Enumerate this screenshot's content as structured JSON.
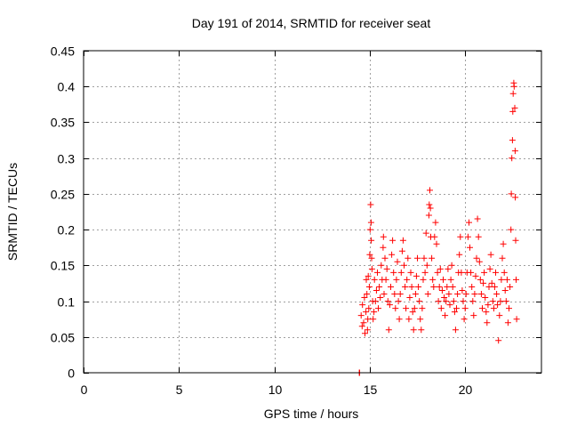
{
  "chart_data": {
    "type": "scatter",
    "title": "Day 191 of 2014, SRMTID for receiver seat",
    "xlabel": "GPS time / hours",
    "ylabel": "SRMTID / TECUs",
    "xlim": [
      0,
      24
    ],
    "ylim": [
      0,
      0.45
    ],
    "xticks": [
      0,
      5,
      10,
      15,
      20
    ],
    "xtick_labels": [
      "0",
      "5",
      "10",
      "15",
      "20"
    ],
    "yticks": [
      0,
      0.05,
      0.1,
      0.15,
      0.2,
      0.25,
      0.3,
      0.35,
      0.4,
      0.45
    ],
    "ytick_labels": [
      "0",
      "0.05",
      "0.1",
      "0.15",
      "0.2",
      "0.25",
      "0.3",
      "0.35",
      "0.4",
      "0.45"
    ],
    "grid": true,
    "marker": "plus",
    "color": "#ff0000",
    "series": [
      {
        "name": "SRMTID",
        "points": [
          [
            14.45,
            0.0
          ],
          [
            14.47,
            0.0
          ],
          [
            14.55,
            0.08
          ],
          [
            14.6,
            0.065
          ],
          [
            14.62,
            0.095
          ],
          [
            14.68,
            0.07
          ],
          [
            14.72,
            0.105
          ],
          [
            14.75,
            0.055
          ],
          [
            14.8,
            0.085
          ],
          [
            14.82,
            0.13
          ],
          [
            14.85,
            0.11
          ],
          [
            14.88,
            0.06
          ],
          [
            14.9,
            0.075
          ],
          [
            14.92,
            0.135
          ],
          [
            14.95,
            0.09
          ],
          [
            14.98,
            0.12
          ],
          [
            15.0,
            0.165
          ],
          [
            15.02,
            0.2
          ],
          [
            15.05,
            0.235
          ],
          [
            15.07,
            0.21
          ],
          [
            15.08,
            0.185
          ],
          [
            15.1,
            0.16
          ],
          [
            15.12,
            0.145
          ],
          [
            15.15,
            0.1
          ],
          [
            15.18,
            0.075
          ],
          [
            15.22,
            0.085
          ],
          [
            15.25,
            0.13
          ],
          [
            15.3,
            0.1
          ],
          [
            15.35,
            0.115
          ],
          [
            15.4,
            0.14
          ],
          [
            15.45,
            0.09
          ],
          [
            15.5,
            0.12
          ],
          [
            15.55,
            0.105
          ],
          [
            15.6,
            0.15
          ],
          [
            15.65,
            0.13
          ],
          [
            15.7,
            0.175
          ],
          [
            15.72,
            0.19
          ],
          [
            15.75,
            0.11
          ],
          [
            15.8,
            0.16
          ],
          [
            15.85,
            0.13
          ],
          [
            15.9,
            0.145
          ],
          [
            15.95,
            0.1
          ],
          [
            16.0,
            0.06
          ],
          [
            16.05,
            0.095
          ],
          [
            16.1,
            0.12
          ],
          [
            16.15,
            0.165
          ],
          [
            16.2,
            0.185
          ],
          [
            16.25,
            0.14
          ],
          [
            16.3,
            0.11
          ],
          [
            16.35,
            0.09
          ],
          [
            16.4,
            0.13
          ],
          [
            16.45,
            0.155
          ],
          [
            16.5,
            0.1
          ],
          [
            16.55,
            0.075
          ],
          [
            16.6,
            0.11
          ],
          [
            16.65,
            0.14
          ],
          [
            16.7,
            0.17
          ],
          [
            16.75,
            0.185
          ],
          [
            16.8,
            0.15
          ],
          [
            16.85,
            0.12
          ],
          [
            16.9,
            0.09
          ],
          [
            16.95,
            0.13
          ],
          [
            17.0,
            0.16
          ],
          [
            17.05,
            0.075
          ],
          [
            17.1,
            0.105
          ],
          [
            17.15,
            0.14
          ],
          [
            17.2,
            0.12
          ],
          [
            17.25,
            0.085
          ],
          [
            17.3,
            0.06
          ],
          [
            17.35,
            0.09
          ],
          [
            17.4,
            0.11
          ],
          [
            17.45,
            0.135
          ],
          [
            17.5,
            0.16
          ],
          [
            17.55,
            0.12
          ],
          [
            17.6,
            0.1
          ],
          [
            17.65,
            0.075
          ],
          [
            17.7,
            0.06
          ],
          [
            17.75,
            0.09
          ],
          [
            17.8,
            0.13
          ],
          [
            17.85,
            0.16
          ],
          [
            17.9,
            0.14
          ],
          [
            17.95,
            0.195
          ],
          [
            18.0,
            0.15
          ],
          [
            18.05,
            0.11
          ],
          [
            18.1,
            0.22
          ],
          [
            18.12,
            0.235
          ],
          [
            18.15,
            0.255
          ],
          [
            18.18,
            0.23
          ],
          [
            18.2,
            0.19
          ],
          [
            18.25,
            0.16
          ],
          [
            18.3,
            0.13
          ],
          [
            18.35,
            0.12
          ],
          [
            18.4,
            0.19
          ],
          [
            18.45,
            0.21
          ],
          [
            18.5,
            0.18
          ],
          [
            18.55,
            0.14
          ],
          [
            18.6,
            0.1
          ],
          [
            18.65,
            0.12
          ],
          [
            18.7,
            0.145
          ],
          [
            18.75,
            0.09
          ],
          [
            18.8,
            0.115
          ],
          [
            18.85,
            0.13
          ],
          [
            18.9,
            0.105
          ],
          [
            18.95,
            0.08
          ],
          [
            19.0,
            0.1
          ],
          [
            19.05,
            0.12
          ],
          [
            19.1,
            0.145
          ],
          [
            19.15,
            0.11
          ],
          [
            19.2,
            0.095
          ],
          [
            19.25,
            0.13
          ],
          [
            19.3,
            0.15
          ],
          [
            19.35,
            0.12
          ],
          [
            19.4,
            0.1
          ],
          [
            19.45,
            0.085
          ],
          [
            19.5,
            0.06
          ],
          [
            19.55,
            0.09
          ],
          [
            19.6,
            0.11
          ],
          [
            19.65,
            0.14
          ],
          [
            19.7,
            0.165
          ],
          [
            19.75,
            0.19
          ],
          [
            19.8,
            0.14
          ],
          [
            19.85,
            0.115
          ],
          [
            19.9,
            0.1
          ],
          [
            19.95,
            0.075
          ],
          [
            20.0,
            0.09
          ],
          [
            20.05,
            0.11
          ],
          [
            20.1,
            0.14
          ],
          [
            20.15,
            0.19
          ],
          [
            20.2,
            0.21
          ],
          [
            20.25,
            0.175
          ],
          [
            20.3,
            0.14
          ],
          [
            20.35,
            0.12
          ],
          [
            20.4,
            0.1
          ],
          [
            20.45,
            0.08
          ],
          [
            20.5,
            0.11
          ],
          [
            20.55,
            0.135
          ],
          [
            20.6,
            0.16
          ],
          [
            20.65,
            0.215
          ],
          [
            20.7,
            0.19
          ],
          [
            20.75,
            0.155
          ],
          [
            20.8,
            0.13
          ],
          [
            20.85,
            0.11
          ],
          [
            20.9,
            0.09
          ],
          [
            20.95,
            0.125
          ],
          [
            21.0,
            0.14
          ],
          [
            21.05,
            0.105
          ],
          [
            21.1,
            0.085
          ],
          [
            21.15,
            0.07
          ],
          [
            21.2,
            0.095
          ],
          [
            21.25,
            0.12
          ],
          [
            21.3,
            0.145
          ],
          [
            21.35,
            0.165
          ],
          [
            21.4,
            0.125
          ],
          [
            21.45,
            0.1
          ],
          [
            21.5,
            0.09
          ],
          [
            21.55,
            0.12
          ],
          [
            21.6,
            0.14
          ],
          [
            21.65,
            0.11
          ],
          [
            21.7,
            0.095
          ],
          [
            21.75,
            0.045
          ],
          [
            21.8,
            0.08
          ],
          [
            21.85,
            0.1
          ],
          [
            21.9,
            0.13
          ],
          [
            21.95,
            0.16
          ],
          [
            22.0,
            0.18
          ],
          [
            22.05,
            0.14
          ],
          [
            22.1,
            0.115
          ],
          [
            22.15,
            0.1
          ],
          [
            22.2,
            0.13
          ],
          [
            22.25,
            0.07
          ],
          [
            22.3,
            0.09
          ],
          [
            22.35,
            0.12
          ],
          [
            22.4,
            0.2
          ],
          [
            22.42,
            0.25
          ],
          [
            22.45,
            0.3
          ],
          [
            22.48,
            0.325
          ],
          [
            22.5,
            0.365
          ],
          [
            22.52,
            0.39
          ],
          [
            22.55,
            0.405
          ],
          [
            22.57,
            0.4
          ],
          [
            22.6,
            0.37
          ],
          [
            22.62,
            0.31
          ],
          [
            22.63,
            0.245
          ],
          [
            22.65,
            0.185
          ],
          [
            22.67,
            0.13
          ],
          [
            22.7,
            0.075
          ]
        ]
      }
    ]
  }
}
